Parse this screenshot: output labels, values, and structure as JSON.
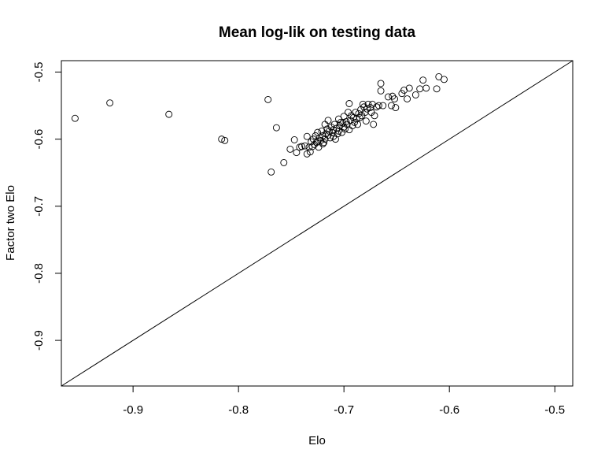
{
  "chart_data": {
    "type": "scatter",
    "title": "Mean log-lik on testing data",
    "xlabel": "Elo",
    "ylabel": "Factor two Elo",
    "xlim": [
      -0.968,
      -0.483
    ],
    "ylim": [
      -0.968,
      -0.483
    ],
    "xticks": [
      "-0.9",
      "-0.8",
      "-0.7",
      "-0.6",
      "-0.5"
    ],
    "yticks": [
      "-0.9",
      "-0.8",
      "-0.7",
      "-0.6",
      "-0.5"
    ],
    "reference_line": "y = x",
    "grid": false,
    "legend": "none",
    "points": [
      [
        -0.955,
        -0.569
      ],
      [
        -0.922,
        -0.546
      ],
      [
        -0.866,
        -0.563
      ],
      [
        -0.816,
        -0.6
      ],
      [
        -0.813,
        -0.602
      ],
      [
        -0.772,
        -0.541
      ],
      [
        -0.769,
        -0.649
      ],
      [
        -0.764,
        -0.583
      ],
      [
        -0.757,
        -0.635
      ],
      [
        -0.751,
        -0.615
      ],
      [
        -0.747,
        -0.601
      ],
      [
        -0.745,
        -0.62
      ],
      [
        -0.742,
        -0.612
      ],
      [
        -0.74,
        -0.611
      ],
      [
        -0.737,
        -0.61
      ],
      [
        -0.735,
        -0.622
      ],
      [
        -0.735,
        -0.596
      ],
      [
        -0.733,
        -0.612
      ],
      [
        -0.732,
        -0.619
      ],
      [
        -0.731,
        -0.604
      ],
      [
        -0.73,
        -0.611
      ],
      [
        -0.729,
        -0.6
      ],
      [
        -0.728,
        -0.608
      ],
      [
        -0.727,
        -0.595
      ],
      [
        -0.726,
        -0.605
      ],
      [
        -0.725,
        -0.603
      ],
      [
        -0.725,
        -0.59
      ],
      [
        -0.724,
        -0.612
      ],
      [
        -0.723,
        -0.598
      ],
      [
        -0.722,
        -0.602
      ],
      [
        -0.721,
        -0.588
      ],
      [
        -0.72,
        -0.595
      ],
      [
        -0.72,
        -0.607
      ],
      [
        -0.719,
        -0.605
      ],
      [
        -0.718,
        -0.578
      ],
      [
        -0.718,
        -0.6
      ],
      [
        -0.717,
        -0.592
      ],
      [
        -0.716,
        -0.585
      ],
      [
        -0.715,
        -0.594
      ],
      [
        -0.715,
        -0.572
      ],
      [
        -0.714,
        -0.588
      ],
      [
        -0.713,
        -0.598
      ],
      [
        -0.712,
        -0.582
      ],
      [
        -0.711,
        -0.59
      ],
      [
        -0.71,
        -0.586
      ],
      [
        -0.71,
        -0.596
      ],
      [
        -0.709,
        -0.578
      ],
      [
        -0.708,
        -0.6
      ],
      [
        -0.707,
        -0.584
      ],
      [
        -0.706,
        -0.592
      ],
      [
        -0.705,
        -0.57
      ],
      [
        -0.705,
        -0.588
      ],
      [
        -0.704,
        -0.58
      ],
      [
        -0.703,
        -0.575
      ],
      [
        -0.702,
        -0.59
      ],
      [
        -0.701,
        -0.576
      ],
      [
        -0.7,
        -0.582
      ],
      [
        -0.7,
        -0.566
      ],
      [
        -0.699,
        -0.585
      ],
      [
        -0.698,
        -0.574
      ],
      [
        -0.697,
        -0.578
      ],
      [
        -0.696,
        -0.56
      ],
      [
        -0.695,
        -0.586
      ],
      [
        -0.695,
        -0.547
      ],
      [
        -0.694,
        -0.572
      ],
      [
        -0.693,
        -0.565
      ],
      [
        -0.692,
        -0.58
      ],
      [
        -0.691,
        -0.568
      ],
      [
        -0.69,
        -0.575
      ],
      [
        -0.689,
        -0.56
      ],
      [
        -0.688,
        -0.57
      ],
      [
        -0.687,
        -0.578
      ],
      [
        -0.686,
        -0.562
      ],
      [
        -0.685,
        -0.568
      ],
      [
        -0.684,
        -0.556
      ],
      [
        -0.683,
        -0.565
      ],
      [
        -0.682,
        -0.548
      ],
      [
        -0.681,
        -0.552
      ],
      [
        -0.68,
        -0.56
      ],
      [
        -0.679,
        -0.573
      ],
      [
        -0.678,
        -0.555
      ],
      [
        -0.677,
        -0.548
      ],
      [
        -0.675,
        -0.553
      ],
      [
        -0.674,
        -0.56
      ],
      [
        -0.673,
        -0.548
      ],
      [
        -0.672,
        -0.578
      ],
      [
        -0.671,
        -0.565
      ],
      [
        -0.669,
        -0.552
      ],
      [
        -0.667,
        -0.55
      ],
      [
        -0.665,
        -0.528
      ],
      [
        -0.665,
        -0.517
      ],
      [
        -0.663,
        -0.55
      ],
      [
        -0.658,
        -0.537
      ],
      [
        -0.655,
        -0.55
      ],
      [
        -0.654,
        -0.536
      ],
      [
        -0.652,
        -0.54
      ],
      [
        -0.651,
        -0.553
      ],
      [
        -0.645,
        -0.532
      ],
      [
        -0.643,
        -0.527
      ],
      [
        -0.64,
        -0.54
      ],
      [
        -0.638,
        -0.524
      ],
      [
        -0.632,
        -0.534
      ],
      [
        -0.628,
        -0.525
      ],
      [
        -0.625,
        -0.512
      ],
      [
        -0.622,
        -0.524
      ],
      [
        -0.612,
        -0.525
      ],
      [
        -0.61,
        -0.507
      ],
      [
        -0.605,
        -0.511
      ]
    ]
  }
}
